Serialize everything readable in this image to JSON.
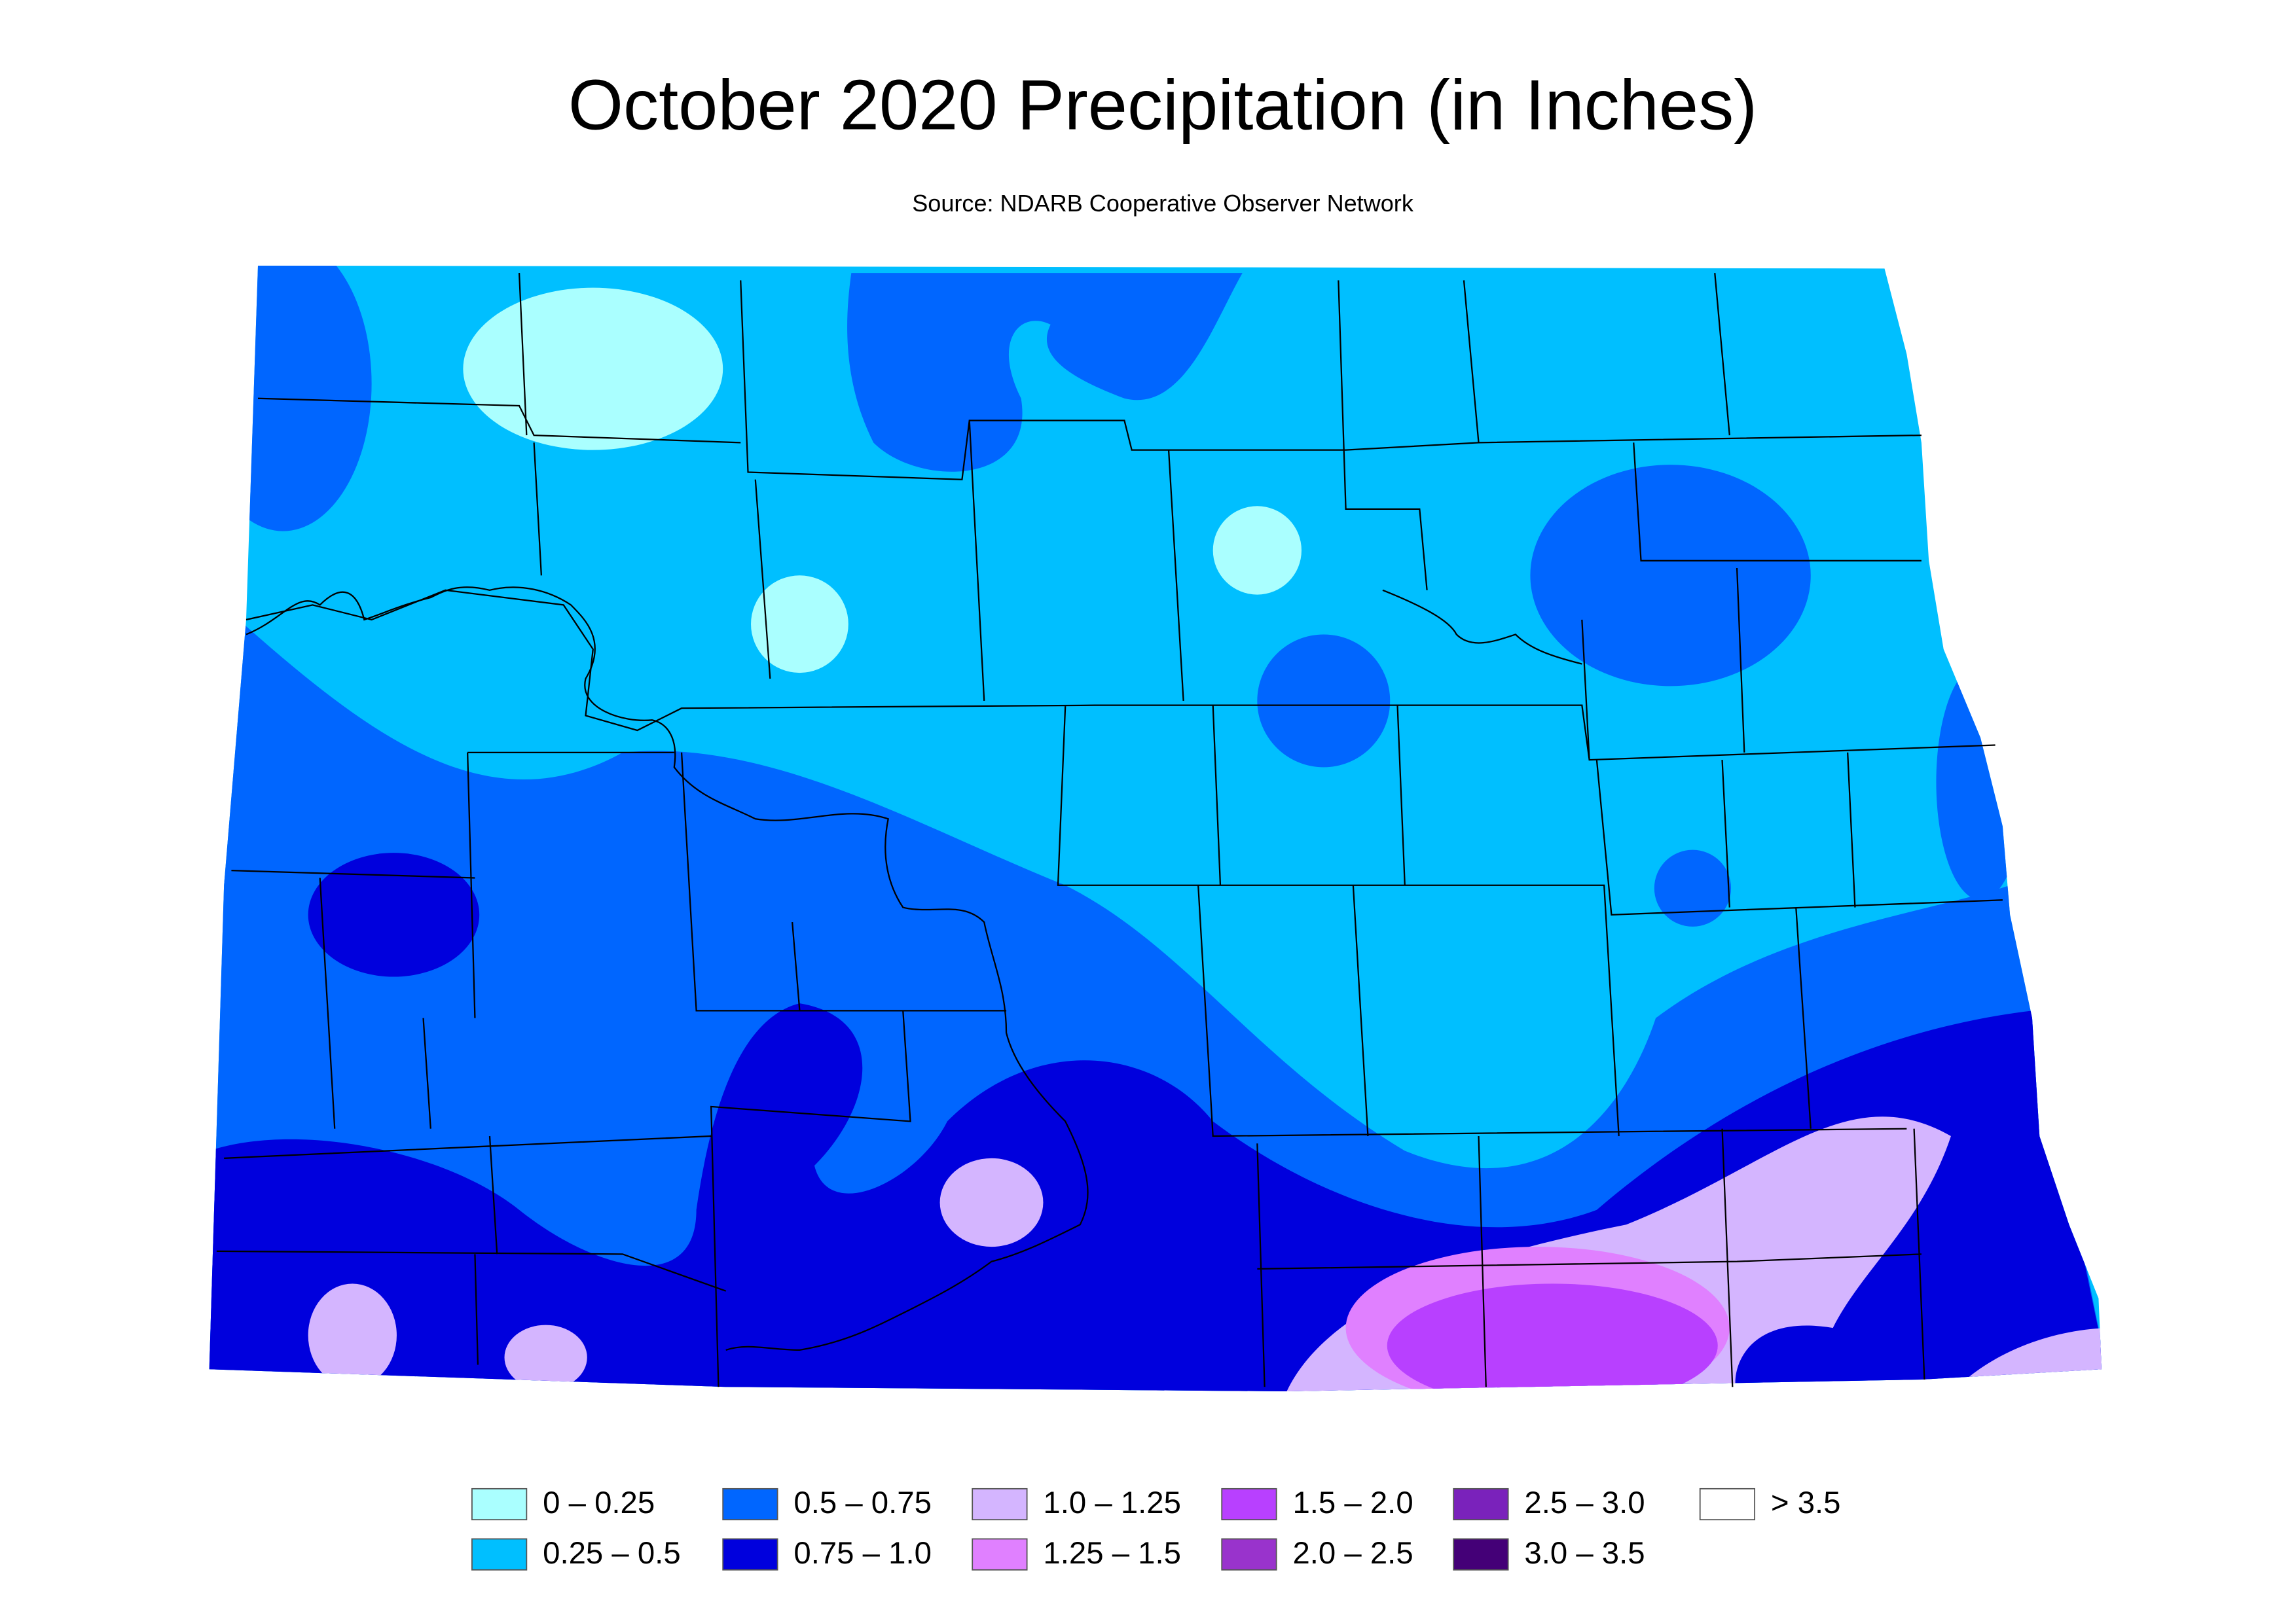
{
  "title": "October 2020 Precipitation (in Inches)",
  "subtitle": "Source: NDARB Cooperative Observer Network",
  "legend": [
    {
      "label": "0 – 0.25",
      "color": "#aaffff"
    },
    {
      "label": "0.25 – 0.5",
      "color": "#00bfff"
    },
    {
      "label": "0.5 – 0.75",
      "color": "#0066ff"
    },
    {
      "label": "0.75 – 1.0",
      "color": "#0000dd"
    },
    {
      "label": "1.0 – 1.25",
      "color": "#d4b5ff"
    },
    {
      "label": "1.25 – 1.5",
      "color": "#e080ff"
    },
    {
      "label": "1.5 – 2.0",
      "color": "#b840ff"
    },
    {
      "label": "2.0 – 2.5",
      "color": "#9933cc"
    },
    {
      "label": "2.5 – 3.0",
      "color": "#7a22bb"
    },
    {
      "label": "3.0 – 3.5",
      "color": "#440077"
    },
    {
      "label": ">  3.5",
      "color": "#ffffff"
    }
  ]
}
